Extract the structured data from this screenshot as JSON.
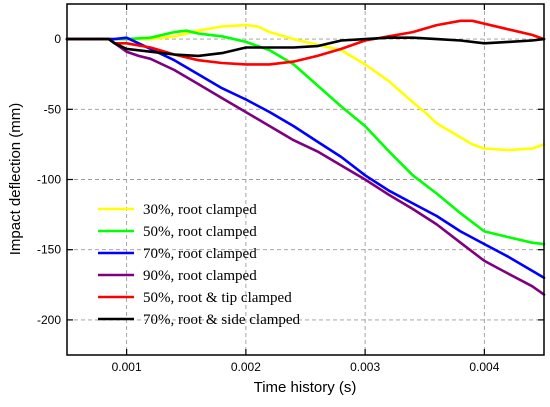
{
  "chart_data": {
    "type": "line",
    "xlabel": "Time history (s)",
    "ylabel": "Impact deflection (mm)",
    "xlim": [
      0.0005,
      0.0045
    ],
    "ylim": [
      -225,
      25
    ],
    "xticks": [
      {
        "value": 0.001,
        "label": "0.001"
      },
      {
        "value": 0.002,
        "label": "0.002"
      },
      {
        "value": 0.003,
        "label": "0.003"
      },
      {
        "value": 0.004,
        "label": "0.004"
      }
    ],
    "yticks": [
      {
        "value": 0,
        "label": "0"
      },
      {
        "value": -50,
        "label": "-50"
      },
      {
        "value": -100,
        "label": "-100"
      },
      {
        "value": -150,
        "label": "-150"
      },
      {
        "value": -200,
        "label": "-200"
      }
    ],
    "grid": true,
    "legend_position": "bottom-left",
    "series": [
      {
        "name": "30%, root clamped",
        "color": "#ffff00",
        "x": [
          0.0005,
          0.00085,
          0.001,
          0.0012,
          0.0014,
          0.0016,
          0.0018,
          0.002,
          0.0021,
          0.0022,
          0.0024,
          0.0026,
          0.0028,
          0.003,
          0.0032,
          0.0034,
          0.0035,
          0.0036,
          0.0038,
          0.0039,
          0.004,
          0.0042,
          0.0044,
          0.0045
        ],
        "y": [
          0,
          0,
          0,
          0,
          2,
          6,
          9,
          10,
          9,
          5,
          0,
          -4,
          -8,
          -18,
          -30,
          -45,
          -52,
          -60,
          -70,
          -75,
          -78,
          -79,
          -78,
          -75
        ]
      },
      {
        "name": "50%, root clamped",
        "color": "#00ff00",
        "x": [
          0.0005,
          0.00085,
          0.001,
          0.0012,
          0.0014,
          0.0015,
          0.0016,
          0.0017,
          0.0018,
          0.002,
          0.0022,
          0.0024,
          0.0026,
          0.0028,
          0.003,
          0.0032,
          0.0034,
          0.0036,
          0.0038,
          0.004,
          0.0042,
          0.0044,
          0.0045
        ],
        "y": [
          0,
          0,
          0,
          1,
          5,
          6,
          4,
          3,
          2,
          -2,
          -8,
          -18,
          -33,
          -48,
          -62,
          -80,
          -97,
          -110,
          -124,
          -137,
          -141,
          -145,
          -146
        ]
      },
      {
        "name": "70%, root clamped",
        "color": "#0000ff",
        "x": [
          0.0005,
          0.00085,
          0.0009,
          0.001,
          0.0011,
          0.0012,
          0.0014,
          0.0016,
          0.0018,
          0.002,
          0.0022,
          0.0024,
          0.0026,
          0.0028,
          0.003,
          0.0032,
          0.0034,
          0.0036,
          0.0038,
          0.004,
          0.0042,
          0.0044,
          0.0045
        ],
        "y": [
          0,
          0,
          0,
          1,
          -3,
          -7,
          -15,
          -25,
          -35,
          -43,
          -52,
          -62,
          -73,
          -84,
          -97,
          -108,
          -117,
          -126,
          -137,
          -146,
          -155,
          -165,
          -170
        ]
      },
      {
        "name": "90%, root clamped",
        "color": "#7f007f",
        "x": [
          0.0005,
          0.00085,
          0.00095,
          0.001,
          0.0011,
          0.0012,
          0.0014,
          0.0016,
          0.0018,
          0.002,
          0.0022,
          0.0024,
          0.0026,
          0.0028,
          0.003,
          0.0032,
          0.0034,
          0.0036,
          0.0038,
          0.004,
          0.0042,
          0.0044,
          0.0045
        ],
        "y": [
          0,
          0,
          -6,
          -9,
          -12,
          -14,
          -22,
          -32,
          -42,
          -52,
          -62,
          -72,
          -80,
          -90,
          -100,
          -111,
          -121,
          -132,
          -145,
          -158,
          -167,
          -176,
          -182
        ]
      },
      {
        "name": "50%, root & tip clamped",
        "color": "#ff0000",
        "x": [
          0.0005,
          0.00085,
          0.0009,
          0.001,
          0.0012,
          0.0014,
          0.0016,
          0.0018,
          0.002,
          0.0022,
          0.0024,
          0.0026,
          0.0028,
          0.003,
          0.0032,
          0.0034,
          0.0036,
          0.0038,
          0.0039,
          0.004,
          0.0042,
          0.0044,
          0.0045
        ],
        "y": [
          0,
          0,
          -3,
          -3,
          -6,
          -11,
          -15,
          -17,
          -18,
          -18,
          -16,
          -12,
          -7,
          -1,
          2,
          5,
          10,
          13,
          13,
          11,
          7,
          3,
          0
        ]
      },
      {
        "name": "70%, root & side clamped",
        "color": "#000000",
        "x": [
          0.0005,
          0.00085,
          0.0009,
          0.001,
          0.0012,
          0.0014,
          0.0016,
          0.0018,
          0.002,
          0.0022,
          0.0024,
          0.0026,
          0.0028,
          0.003,
          0.0032,
          0.0034,
          0.0036,
          0.0038,
          0.004,
          0.0042,
          0.0044,
          0.0045
        ],
        "y": [
          0,
          0,
          -3,
          -7,
          -9,
          -11,
          -12,
          -10,
          -6,
          -6,
          -6,
          -5,
          -1,
          0,
          1,
          1,
          0,
          -1,
          -3,
          -2,
          -1,
          0
        ]
      }
    ]
  }
}
